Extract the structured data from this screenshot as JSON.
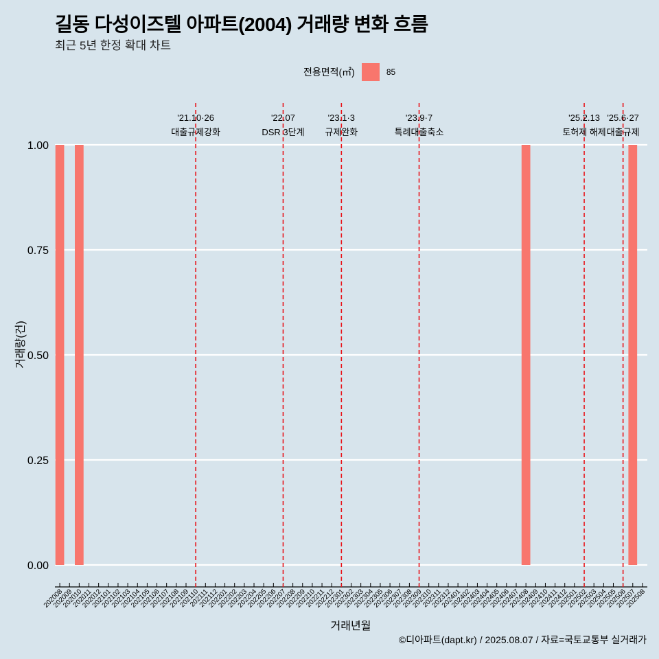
{
  "title": "길동 다성이즈텔 아파트(2004) 거래량 변화 흐름",
  "subtitle": "최근 5년 한정 확대 차트",
  "legend": {
    "title": "전용면적(㎡)",
    "item": "85",
    "color": "#f8766d"
  },
  "caption": "©디아파트(dapt.kr) / 2025.08.07 / 자료=국토교통부 실거래가",
  "chart_data": {
    "type": "bar",
    "xlabel": "거래년월",
    "ylabel": "거래량(건)",
    "ylim": [
      0,
      1
    ],
    "yticks": [
      "0.00",
      "0.25",
      "0.50",
      "0.75",
      "1.00"
    ],
    "grid": true,
    "legend_position": "top",
    "categories": [
      "202008",
      "202009",
      "202010",
      "202011",
      "202012",
      "202101",
      "202102",
      "202103",
      "202104",
      "202105",
      "202106",
      "202107",
      "202108",
      "202109",
      "202110",
      "202111",
      "202112",
      "202201",
      "202202",
      "202203",
      "202204",
      "202205",
      "202206",
      "202207",
      "202208",
      "202209",
      "202210",
      "202211",
      "202212",
      "202301",
      "202302",
      "202303",
      "202304",
      "202305",
      "202306",
      "202307",
      "202308",
      "202309",
      "202310",
      "202311",
      "202312",
      "202401",
      "202402",
      "202403",
      "202404",
      "202405",
      "202406",
      "202407",
      "202408",
      "202409",
      "202410",
      "202411",
      "202412",
      "202501",
      "202502",
      "202503",
      "202504",
      "202505",
      "202506",
      "202507",
      "202508"
    ],
    "series": [
      {
        "name": "85",
        "color": "#f8766d",
        "values": [
          1,
          0,
          1,
          0,
          0,
          0,
          0,
          0,
          0,
          0,
          0,
          0,
          0,
          0,
          0,
          0,
          0,
          0,
          0,
          0,
          0,
          0,
          0,
          0,
          0,
          0,
          0,
          0,
          0,
          0,
          0,
          0,
          0,
          0,
          0,
          0,
          0,
          0,
          0,
          0,
          0,
          0,
          0,
          0,
          0,
          0,
          0,
          0,
          1,
          0,
          0,
          0,
          0,
          0,
          0,
          0,
          0,
          0,
          0,
          1,
          0
        ]
      }
    ],
    "annotations": [
      {
        "category": "202110",
        "line1": "'21.10·26",
        "line2": "대출규제강화"
      },
      {
        "category": "202207",
        "line1": "'22.07",
        "line2": "DSR 3단계"
      },
      {
        "category": "202301",
        "line1": "'23.1·3",
        "line2": "규제완화"
      },
      {
        "category": "202309",
        "line1": "'23.9·7",
        "line2": "특례대출축소"
      },
      {
        "category": "202502",
        "line1": "'25.2.13",
        "line2": "토허제 해제"
      },
      {
        "category": "202506",
        "line1": "'25.6·27",
        "line2": "대출규제"
      }
    ]
  }
}
